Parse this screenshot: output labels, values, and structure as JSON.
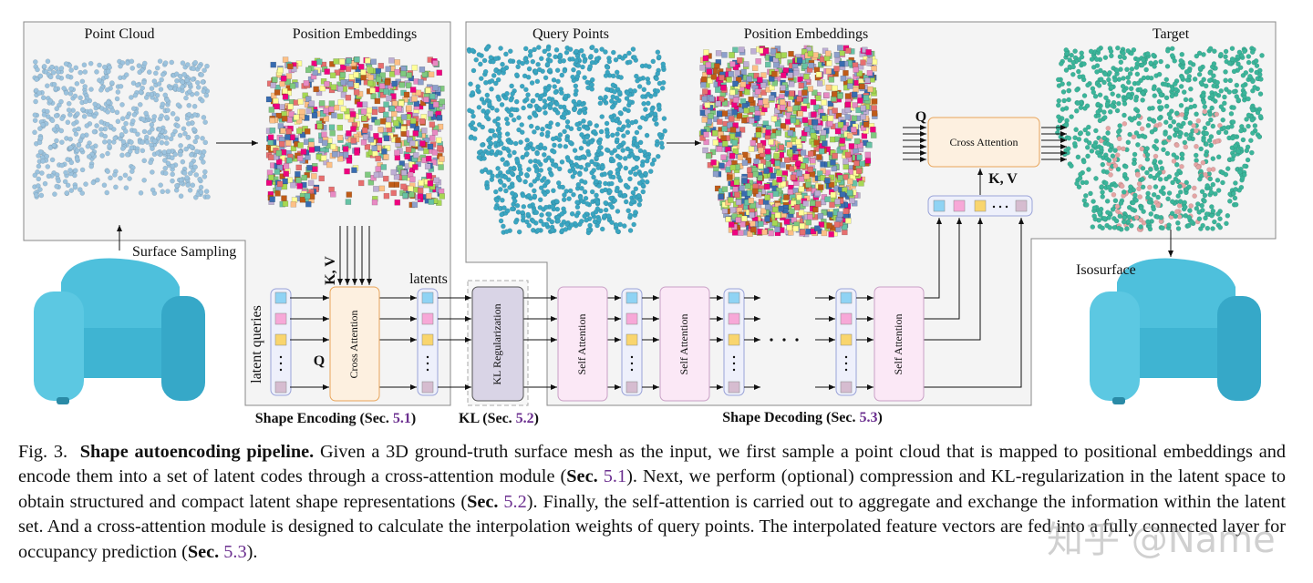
{
  "figure": {
    "panels": {
      "point_cloud": "Point Cloud",
      "position_embeddings_in": "Position Embeddings",
      "query_points": "Query Points",
      "position_embeddings_out": "Position Embeddings",
      "target": "Target",
      "surface_sampling": "Surface Sampling",
      "isosurface": "Isosurface"
    },
    "encoder": {
      "kv": "K, V",
      "latents": "latents",
      "latent_queries": "latent queries",
      "q": "Q",
      "cross_attention": "Cross Attention"
    },
    "kl": {
      "block": "KL Regularization"
    },
    "decoder": {
      "self_attention": "Self Attention",
      "q": "Q",
      "kv": "K, V",
      "cross_attention": "Cross Attention"
    },
    "sections": [
      {
        "name": "Shape Encoding (Sec.",
        "ref": "5.1",
        "end": ")"
      },
      {
        "name": "KL (Sec.",
        "ref": "5.2",
        "end": ")"
      },
      {
        "name": "Shape Decoding (Sec.",
        "ref": "5.3",
        "end": ")"
      }
    ]
  },
  "caption": {
    "label": "Fig. 3.",
    "title": "Shape autoencoding pipeline.",
    "body": [
      "Given a 3D ground-truth surface mesh as the input, we first sample a point cloud that is mapped to positional embeddings and encode them into a set of latent codes through a cross-attention module (",
      "Sec.",
      "5.1",
      "). Next, we perform (optional) compression and KL-regularization in the latent space to obtain structured and compact latent shape representations (",
      "Sec.",
      "5.2",
      "). Finally, the self-attention is carried out to aggregate and exchange the information within the latent set. And a cross-attention module is designed to calculate the interpolation weights of query points. The interpolated feature vectors are fed into a fully connected layer for occupancy prediction (",
      "Sec.",
      "5.3",
      ")."
    ]
  },
  "watermark": "知乎 @Name"
}
